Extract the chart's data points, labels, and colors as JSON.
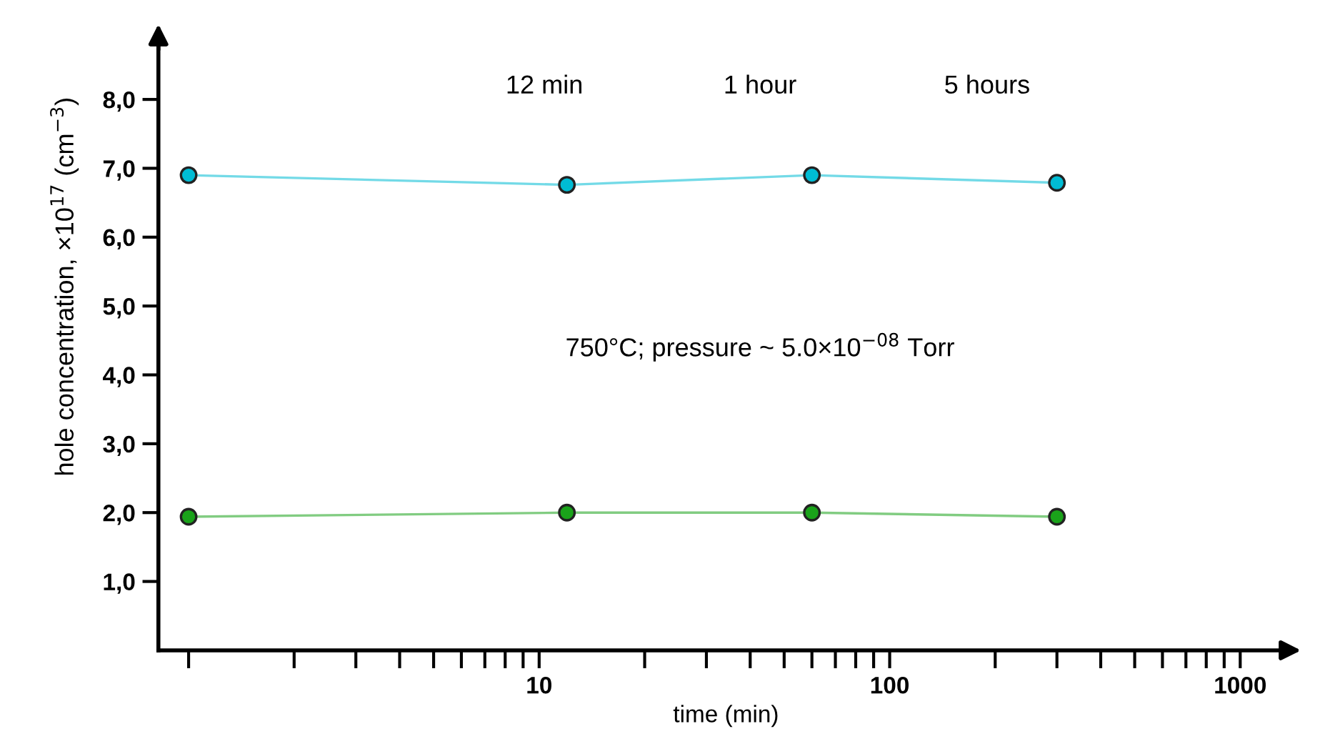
{
  "chart_data": {
    "type": "line",
    "xlabel": "time (min)",
    "ylabel": "hole concentration, ×10$^{17}$ (cm$^{−3}$)",
    "x": [
      1,
      12,
      60,
      300
    ],
    "series": [
      {
        "color": "#00bcd4",
        "values": [
          6.9,
          6.76,
          6.9,
          6.79
        ]
      },
      {
        "color": "#1aa31a",
        "values": [
          1.94,
          2.0,
          2.0,
          1.94
        ]
      }
    ],
    "log": "x",
    "marker": "circle",
    "line_style": "solid",
    "grid": false,
    "legend": false,
    "xlim": [
      0.82,
      1420
    ],
    "ylim": [
      0,
      8.8
    ],
    "xticks": [
      {
        "value": 1,
        "label": null
      },
      {
        "value": 2,
        "label": null
      },
      {
        "value": 3,
        "label": null
      },
      {
        "value": 4,
        "label": null
      },
      {
        "value": 5,
        "label": null
      },
      {
        "value": 6,
        "label": null
      },
      {
        "value": 7,
        "label": null
      },
      {
        "value": 8,
        "label": null
      },
      {
        "value": 9,
        "label": null
      },
      10,
      {
        "value": 20,
        "label": null
      },
      {
        "value": 30,
        "label": null
      },
      {
        "value": 40,
        "label": null
      },
      {
        "value": 50,
        "label": null
      },
      {
        "value": 60,
        "label": null
      },
      {
        "value": 70,
        "label": null
      },
      {
        "value": 80,
        "label": null
      },
      {
        "value": 90,
        "label": null
      },
      100,
      {
        "value": 200,
        "label": null
      },
      {
        "value": 300,
        "label": null
      },
      {
        "value": 400,
        "label": null
      },
      {
        "value": 500,
        "label": null
      },
      {
        "value": 600,
        "label": null
      },
      {
        "value": 700,
        "label": null
      },
      {
        "value": 800,
        "label": null
      },
      {
        "value": 900,
        "label": null
      },
      1000
    ],
    "yticks": [
      {
        "value": 1,
        "label": "1,0"
      },
      {
        "value": 2,
        "label": "2,0"
      },
      {
        "value": 3,
        "label": "3,0"
      },
      {
        "value": 4,
        "label": "4,0"
      },
      {
        "value": 5,
        "label": "5,0"
      },
      {
        "value": 6,
        "label": "6,0"
      },
      {
        "value": 7,
        "label": "7,0"
      },
      {
        "value": 8,
        "label": "8,0"
      }
    ],
    "annotations": [
      "12 min",
      "1 hour",
      "5 hours",
      "750°C; pressure ~ 5.0×10$^{−08}$ Torr"
    ]
  }
}
